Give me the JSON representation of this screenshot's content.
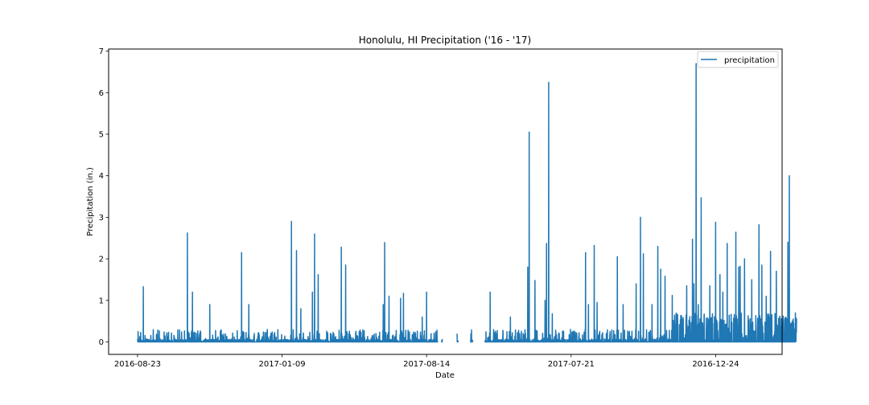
{
  "chart_data": {
    "type": "line",
    "title": "Honolulu, HI Precipitation ('16 - '17)",
    "xlabel": "Date",
    "ylabel": "Precipitation (in.)",
    "ylim": [
      -0.3,
      7.05
    ],
    "yticks": [
      0,
      1,
      2,
      3,
      4,
      5,
      6,
      7
    ],
    "xlim": [
      -200,
      4460
    ],
    "xtick_positions": [
      0,
      1000,
      2000,
      3000,
      4000
    ],
    "xtick_labels": [
      "2016-08-23",
      "2017-01-09",
      "2017-08-14",
      "2017-07-21",
      "2016-12-24"
    ],
    "grid": false,
    "legend_position": "top-right",
    "color": "#1f77b4",
    "series": [
      {
        "name": "precipitation",
        "peaks": [
          [
            40,
            1.33
          ],
          [
            345,
            2.62
          ],
          [
            380,
            1.2
          ],
          [
            500,
            0.9
          ],
          [
            720,
            2.15
          ],
          [
            770,
            0.9
          ],
          [
            1065,
            2.9
          ],
          [
            1100,
            2.2
          ],
          [
            1130,
            0.8
          ],
          [
            1210,
            1.2
          ],
          [
            1225,
            2.6
          ],
          [
            1250,
            1.62
          ],
          [
            1410,
            2.28
          ],
          [
            1440,
            1.85
          ],
          [
            1700,
            0.9
          ],
          [
            1710,
            2.39
          ],
          [
            1740,
            1.1
          ],
          [
            1820,
            1.05
          ],
          [
            1840,
            1.17
          ],
          [
            1970,
            0.6
          ],
          [
            2000,
            1.2
          ],
          [
            2100,
            0.4
          ],
          [
            2245,
            2.41
          ],
          [
            2400,
            1.22
          ],
          [
            2440,
            1.2
          ],
          [
            2580,
            0.6
          ],
          [
            2700,
            1.8
          ],
          [
            2710,
            5.05
          ],
          [
            2750,
            1.48
          ],
          [
            2820,
            1.0
          ],
          [
            2830,
            2.37
          ],
          [
            2845,
            6.25
          ],
          [
            2870,
            0.68
          ],
          [
            3100,
            2.15
          ],
          [
            3120,
            0.9
          ],
          [
            3160,
            2.32
          ],
          [
            3180,
            0.95
          ],
          [
            3320,
            2.05
          ],
          [
            3360,
            0.9
          ],
          [
            3450,
            1.4
          ],
          [
            3480,
            3.0
          ],
          [
            3500,
            2.12
          ],
          [
            3560,
            0.9
          ],
          [
            3600,
            2.3
          ],
          [
            3620,
            1.75
          ],
          [
            3650,
            1.58
          ],
          [
            3700,
            1.12
          ],
          [
            3800,
            1.35
          ],
          [
            3840,
            2.47
          ],
          [
            3850,
            1.4
          ],
          [
            3865,
            6.7
          ],
          [
            3880,
            0.9
          ],
          [
            3900,
            3.47
          ],
          [
            3960,
            1.35
          ],
          [
            4000,
            2.88
          ],
          [
            4030,
            1.62
          ],
          [
            4050,
            1.2
          ],
          [
            4080,
            2.37
          ],
          [
            4140,
            2.64
          ],
          [
            4160,
            1.8
          ],
          [
            4170,
            1.82
          ],
          [
            4200,
            2.0
          ],
          [
            4250,
            1.5
          ],
          [
            4300,
            2.82
          ],
          [
            4320,
            1.85
          ],
          [
            4350,
            1.1
          ],
          [
            4380,
            2.18
          ],
          [
            4420,
            1.7
          ],
          [
            4500,
            2.4
          ],
          [
            4510,
            4.0
          ],
          [
            4530,
            0.5
          ],
          [
            4560,
            0.55
          ]
        ],
        "gaps": [
          [
            2080,
            2100
          ],
          [
            2110,
            2210
          ],
          [
            2220,
            2300
          ],
          [
            2320,
            2400
          ]
        ]
      }
    ]
  }
}
